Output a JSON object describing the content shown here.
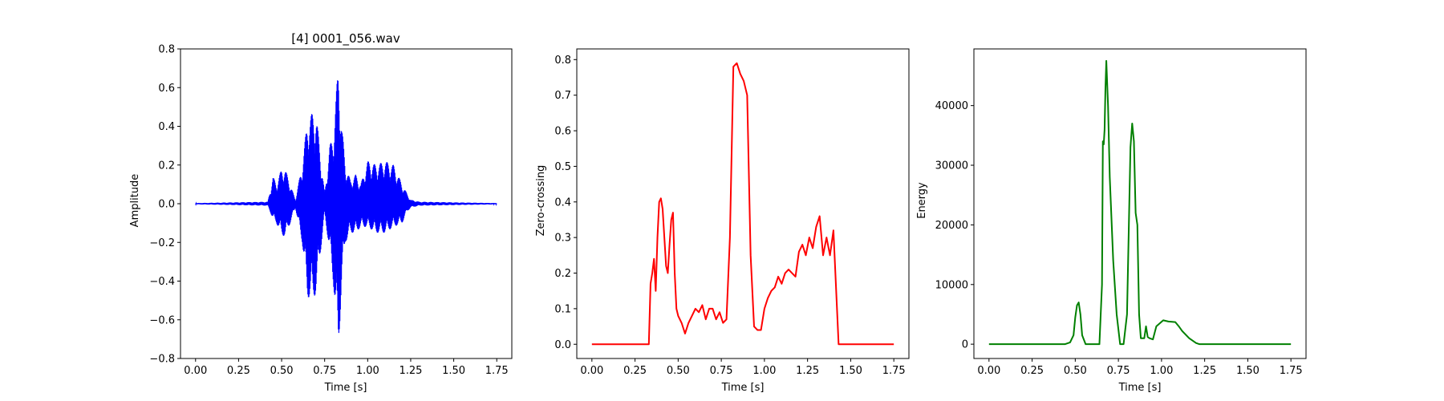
{
  "chart_data": [
    {
      "type": "line",
      "title": "[4] 0001_056.wav",
      "xlabel": "Time [s]",
      "ylabel": "Amplitude",
      "color": "#0000ff",
      "xlim": [
        -0.0875,
        1.8375
      ],
      "ylim": [
        -0.8,
        0.8
      ],
      "xticks": [
        "0.00",
        "0.25",
        "0.50",
        "0.75",
        "1.00",
        "1.25",
        "1.50",
        "1.75"
      ],
      "yticks": [
        "−0.8",
        "−0.6",
        "−0.4",
        "−0.2",
        "0.0",
        "0.2",
        "0.4",
        "0.6",
        "0.8"
      ],
      "envelope": {
        "t": [
          0.0,
          0.42,
          0.45,
          0.47,
          0.5,
          0.52,
          0.55,
          0.58,
          0.62,
          0.65,
          0.68,
          0.7,
          0.72,
          0.75,
          0.78,
          0.8,
          0.83,
          0.85,
          0.87,
          0.9,
          0.93,
          0.96,
          1.0,
          1.05,
          1.1,
          1.15,
          1.2,
          1.23,
          1.25,
          1.3,
          1.75
        ],
        "max": [
          0.003,
          0.01,
          0.14,
          0.1,
          0.18,
          0.18,
          0.1,
          0.02,
          0.2,
          0.43,
          0.47,
          0.47,
          0.3,
          0.05,
          0.3,
          0.35,
          0.72,
          0.4,
          0.2,
          0.12,
          0.15,
          0.1,
          0.22,
          0.2,
          0.22,
          0.2,
          0.1,
          0.05,
          0.02,
          0.01,
          0.003
        ],
        "min": [
          -0.003,
          -0.01,
          -0.08,
          -0.1,
          -0.16,
          -0.17,
          -0.1,
          -0.02,
          -0.2,
          -0.48,
          -0.5,
          -0.46,
          -0.3,
          -0.05,
          -0.25,
          -0.4,
          -0.76,
          -0.4,
          -0.2,
          -0.15,
          -0.15,
          -0.12,
          -0.12,
          -0.15,
          -0.15,
          -0.12,
          -0.1,
          -0.04,
          -0.02,
          -0.01,
          -0.003
        ]
      }
    },
    {
      "type": "line",
      "title": "",
      "xlabel": "Time [s]",
      "ylabel": "Zero-crossing",
      "color": "#ff0000",
      "xlim": [
        -0.0875,
        1.8375
      ],
      "ylim": [
        -0.04,
        0.83
      ],
      "xticks": [
        "0.00",
        "0.25",
        "0.50",
        "0.75",
        "1.00",
        "1.25",
        "1.50",
        "1.75"
      ],
      "yticks": [
        "0.0",
        "0.1",
        "0.2",
        "0.3",
        "0.4",
        "0.5",
        "0.6",
        "0.7",
        "0.8"
      ],
      "x": [
        0.0,
        0.33,
        0.34,
        0.35,
        0.36,
        0.37,
        0.38,
        0.39,
        0.4,
        0.41,
        0.42,
        0.43,
        0.44,
        0.45,
        0.46,
        0.47,
        0.48,
        0.49,
        0.5,
        0.52,
        0.54,
        0.56,
        0.58,
        0.6,
        0.62,
        0.64,
        0.66,
        0.68,
        0.7,
        0.72,
        0.74,
        0.76,
        0.78,
        0.8,
        0.82,
        0.84,
        0.86,
        0.88,
        0.9,
        0.92,
        0.94,
        0.96,
        0.98,
        1.0,
        1.02,
        1.04,
        1.06,
        1.08,
        1.1,
        1.12,
        1.14,
        1.16,
        1.18,
        1.2,
        1.22,
        1.24,
        1.26,
        1.28,
        1.3,
        1.32,
        1.34,
        1.36,
        1.38,
        1.4,
        1.43,
        1.75
      ],
      "y": [
        0.0,
        0.0,
        0.17,
        0.2,
        0.24,
        0.15,
        0.3,
        0.4,
        0.41,
        0.38,
        0.3,
        0.22,
        0.2,
        0.28,
        0.35,
        0.37,
        0.2,
        0.1,
        0.08,
        0.06,
        0.03,
        0.06,
        0.08,
        0.1,
        0.09,
        0.11,
        0.07,
        0.1,
        0.1,
        0.07,
        0.09,
        0.06,
        0.07,
        0.3,
        0.78,
        0.79,
        0.76,
        0.74,
        0.7,
        0.25,
        0.05,
        0.04,
        0.04,
        0.1,
        0.13,
        0.15,
        0.16,
        0.19,
        0.17,
        0.2,
        0.21,
        0.2,
        0.19,
        0.26,
        0.28,
        0.25,
        0.3,
        0.27,
        0.33,
        0.36,
        0.25,
        0.3,
        0.25,
        0.32,
        0.0,
        0.0
      ]
    },
    {
      "type": "line",
      "title": "",
      "xlabel": "Time [s]",
      "ylabel": "Energy",
      "color": "#008000",
      "xlim": [
        -0.0875,
        1.8375
      ],
      "ylim": [
        -2400,
        49500
      ],
      "xticks": [
        "0.00",
        "0.25",
        "0.50",
        "0.75",
        "1.00",
        "1.25",
        "1.50",
        "1.75"
      ],
      "yticks": [
        "0",
        "10000",
        "20000",
        "30000",
        "40000"
      ],
      "x": [
        0.0,
        0.44,
        0.47,
        0.49,
        0.5,
        0.51,
        0.52,
        0.53,
        0.54,
        0.56,
        0.6,
        0.64,
        0.655,
        0.66,
        0.665,
        0.67,
        0.675,
        0.68,
        0.69,
        0.7,
        0.72,
        0.74,
        0.76,
        0.78,
        0.8,
        0.82,
        0.83,
        0.84,
        0.85,
        0.86,
        0.87,
        0.88,
        0.9,
        0.91,
        0.92,
        0.93,
        0.95,
        0.97,
        0.99,
        1.01,
        1.04,
        1.08,
        1.1,
        1.12,
        1.16,
        1.2,
        1.22,
        1.25,
        1.75
      ],
      "y": [
        0,
        0,
        300,
        1500,
        4500,
        6500,
        7000,
        5000,
        1500,
        0,
        0,
        0,
        10000,
        34000,
        33500,
        36000,
        43000,
        47500,
        40000,
        28000,
        14000,
        5000,
        0,
        0,
        5000,
        33000,
        37000,
        34000,
        22000,
        20000,
        5000,
        1000,
        1000,
        3000,
        1200,
        1000,
        800,
        3000,
        3500,
        4000,
        3800,
        3700,
        3000,
        2200,
        1000,
        200,
        0,
        0,
        0
      ]
    }
  ]
}
